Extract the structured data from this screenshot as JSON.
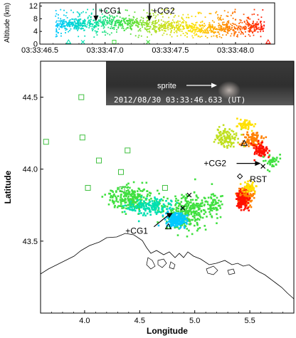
{
  "chart_data": [
    {
      "type": "scatter",
      "ylabel": "Altitude (km)",
      "xlim": [
        46.5,
        48.3
      ],
      "ylim": [
        0,
        13
      ],
      "x_ticks": [
        46.5,
        47.0,
        47.5,
        48.0
      ],
      "x_tick_labels": [
        "03:33:46.5",
        "03:33:47.0",
        "03:33:47.5",
        "03:33:48.0"
      ],
      "y_ticks": [
        0,
        4,
        8,
        12
      ],
      "y_tick_labels": [
        "0",
        "4",
        "8",
        "12"
      ],
      "color_scale": [
        "#00c8ff",
        "#00e0b0",
        "#40e040",
        "#c0e020",
        "#ffe000",
        "#ff8000",
        "#ff1000"
      ],
      "annotations": [
        {
          "label": "+CG1",
          "x": 46.93,
          "y": 13
        },
        {
          "label": "+CG2",
          "x": 47.34,
          "y": 13
        }
      ],
      "ground_markers": [
        {
          "marker": "triangle",
          "x": 46.72,
          "color": "#00e0b0"
        },
        {
          "marker": "x",
          "x": 46.83,
          "color": "#00e0b0"
        },
        {
          "marker": "square",
          "x": 47.07,
          "color": "#40e040"
        },
        {
          "marker": "x",
          "x": 47.33,
          "color": "#40e040"
        },
        {
          "marker": "triangle",
          "x": 48.25,
          "color": "#ff1000"
        }
      ]
    },
    {
      "type": "scatter",
      "xlabel": "Longitude",
      "ylabel": "Latitude",
      "xlim": [
        3.6,
        5.9
      ],
      "ylim": [
        43.0,
        44.75
      ],
      "x_ticks": [
        4.0,
        4.5,
        5.0,
        5.5
      ],
      "x_tick_labels": [
        "4.0",
        "4.5",
        "5.0",
        "5.5"
      ],
      "y_ticks": [
        43.5,
        44.0,
        44.5
      ],
      "y_tick_labels": [
        "43.5",
        "44.0",
        "44.5"
      ],
      "inset": {
        "sprite_label": "sprite",
        "timestamp": "2012/08/30 03:33:46.633 (UT)"
      },
      "annotations": [
        {
          "label": "+CG1",
          "x": 4.5,
          "y": 43.57
        },
        {
          "label": "+CG2",
          "x": 5.05,
          "y": 44.04
        },
        {
          "label": "RST",
          "x": 5.5,
          "y": 43.93
        }
      ],
      "squares": [
        {
          "x": 3.65,
          "y": 44.19
        },
        {
          "x": 3.97,
          "y": 44.5
        },
        {
          "x": 3.98,
          "y": 44.22
        },
        {
          "x": 4.13,
          "y": 44.06
        },
        {
          "x": 4.39,
          "y": 44.13
        },
        {
          "x": 4.33,
          "y": 43.98
        },
        {
          "x": 4.34,
          "y": 43.86
        },
        {
          "x": 4.03,
          "y": 43.87
        },
        {
          "x": 4.73,
          "y": 43.87
        }
      ],
      "stations": [
        {
          "marker": "triangle",
          "x": 4.76,
          "y": 43.6
        },
        {
          "marker": "triangle",
          "x": 5.45,
          "y": 44.18
        },
        {
          "marker": "x",
          "x": 4.89,
          "y": 43.73
        },
        {
          "marker": "x",
          "x": 4.95,
          "y": 43.82
        },
        {
          "marker": "x",
          "x": 5.62,
          "y": 44.02
        },
        {
          "marker": "diamond",
          "x": 5.41,
          "y": 43.95
        }
      ],
      "clusters": [
        {
          "cx": 4.42,
          "cy": 43.8,
          "sx": 0.17,
          "sy": 0.07,
          "n": 230,
          "color": "#40e040"
        },
        {
          "cx": 4.92,
          "cy": 43.7,
          "sx": 0.16,
          "sy": 0.1,
          "n": 300,
          "color": "#40e040"
        },
        {
          "cx": 4.6,
          "cy": 43.74,
          "sx": 0.16,
          "sy": 0.05,
          "n": 150,
          "color": "#00e0b0"
        },
        {
          "cx": 4.82,
          "cy": 43.65,
          "sx": 0.08,
          "sy": 0.04,
          "n": 200,
          "color": "#00c8ff"
        },
        {
          "cx": 5.18,
          "cy": 43.76,
          "sx": 0.07,
          "sy": 0.06,
          "n": 60,
          "color": "#40e040"
        },
        {
          "cx": 5.46,
          "cy": 43.82,
          "sx": 0.06,
          "sy": 0.06,
          "n": 140,
          "color": "#ff8000"
        },
        {
          "cx": 5.43,
          "cy": 43.78,
          "sx": 0.05,
          "sy": 0.05,
          "n": 110,
          "color": "#ff1000"
        },
        {
          "cx": 5.5,
          "cy": 43.88,
          "sx": 0.05,
          "sy": 0.03,
          "n": 50,
          "color": "#ffe000"
        },
        {
          "cx": 5.3,
          "cy": 44.22,
          "sx": 0.09,
          "sy": 0.05,
          "n": 110,
          "color": "#c0e020"
        },
        {
          "cx": 5.52,
          "cy": 44.2,
          "sx": 0.07,
          "sy": 0.05,
          "n": 90,
          "color": "#ff8000"
        },
        {
          "cx": 5.6,
          "cy": 44.13,
          "sx": 0.05,
          "sy": 0.04,
          "n": 90,
          "color": "#ff1000"
        },
        {
          "cx": 5.46,
          "cy": 44.3,
          "sx": 0.06,
          "sy": 0.03,
          "n": 50,
          "color": "#ffe000"
        },
        {
          "cx": 5.7,
          "cy": 44.05,
          "sx": 0.05,
          "sy": 0.04,
          "n": 40,
          "color": "#40e040"
        }
      ]
    }
  ]
}
